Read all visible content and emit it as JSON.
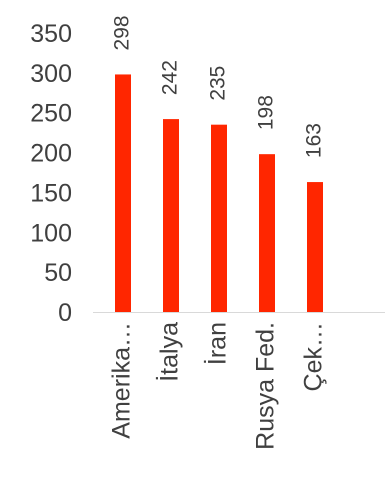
{
  "chart_data": {
    "type": "bar",
    "categories": [
      "Amerika…",
      "İtalya",
      "İran",
      "Rusya Fed.",
      "Çek…"
    ],
    "values": [
      298,
      242,
      235,
      198,
      163
    ],
    "data_labels": [
      "298",
      "242",
      "235",
      "198",
      "163"
    ],
    "y_ticks": [
      "0",
      "50",
      "100",
      "150",
      "200",
      "250",
      "300",
      "350"
    ],
    "y_tick_values": [
      0,
      50,
      100,
      150,
      200,
      250,
      300,
      350
    ],
    "ylim": [
      0,
      350
    ],
    "grid": false,
    "bar_color": "#ff2600",
    "axis_color": "#d9d9d9",
    "text_color": "#404040",
    "category_label_rotation": "vertical",
    "data_label_rotation": "vertical"
  }
}
